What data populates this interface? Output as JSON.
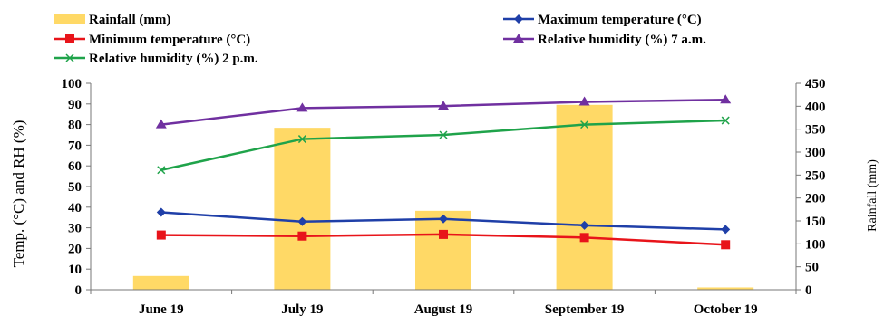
{
  "chart_data": {
    "type": "bar+line",
    "categories": [
      "June 19",
      "July 19",
      "August 19",
      "September 19",
      "October 19"
    ],
    "bar_series": {
      "name": "Rainfall (mm)",
      "axis": "right",
      "color": "#FFD966",
      "values": [
        30,
        353,
        172,
        403,
        5
      ]
    },
    "line_series": [
      {
        "name": "Maximum temperature (°C)",
        "color": "#1F3FA8",
        "marker": "diamond",
        "values": [
          37.5,
          33,
          34.3,
          31.2,
          29.2
        ]
      },
      {
        "name": "Minimum temperature (°C)",
        "color": "#E8141A",
        "marker": "square",
        "values": [
          26.5,
          26,
          26.8,
          25.3,
          21.8
        ]
      },
      {
        "name": "Relative humidity (%) 7 a.m.",
        "color": "#7030A0",
        "marker": "triangle",
        "values": [
          80,
          88,
          89,
          91,
          92
        ]
      },
      {
        "name": "Relative humidity (%) 2 p.m.",
        "color": "#1FA34A",
        "marker": "x",
        "values": [
          58,
          73,
          75,
          80,
          82
        ]
      }
    ],
    "legend_order": [
      "Rainfall (mm)",
      "Maximum temperature (°C)",
      "Minimum temperature (°C)",
      "Relative humidity (%) 7 a.m.",
      "Relative humidity (%) 2 p.m."
    ],
    "y_left": {
      "label": "Temp. (°C) and RH (%)",
      "min": 0,
      "max": 100,
      "step": 10
    },
    "y_right": {
      "label": "Rainfall (mm)",
      "min": 0,
      "max": 450,
      "step": 50
    },
    "grid": false,
    "legend_position": "top"
  }
}
